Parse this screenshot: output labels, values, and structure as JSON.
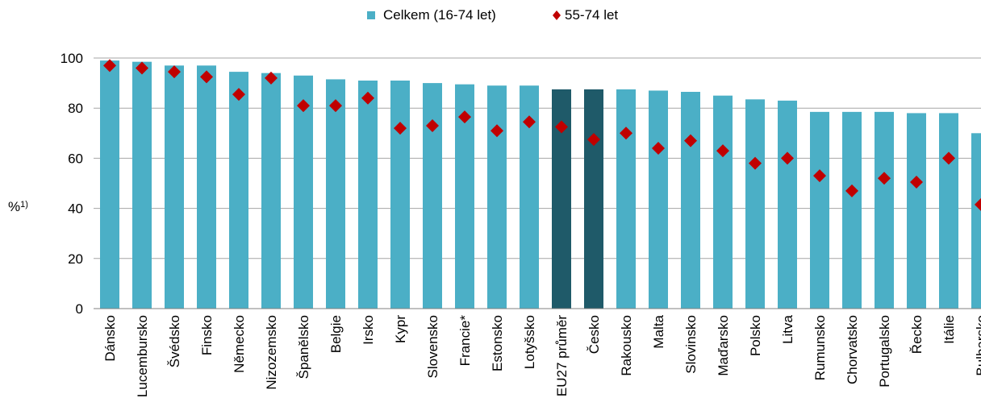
{
  "chart_data": {
    "type": "bar",
    "legend": {
      "position": "top-center",
      "items": [
        {
          "key": "total",
          "label": "Celkem (16-74 let)",
          "marker": "square"
        },
        {
          "key": "older",
          "label": "55-74 let",
          "marker": "diamond"
        }
      ]
    },
    "ylabel": "%",
    "ylabel_superscript": "1)",
    "ylim": [
      0,
      100
    ],
    "yticks": [
      0,
      20,
      40,
      60,
      80,
      100
    ],
    "grid": true,
    "categories": [
      "Dánsko",
      "Lucembursko",
      "Švédsko",
      "Finsko",
      "Německo",
      "Nizozemsko",
      "Španělsko",
      "Belgie",
      "Irsko",
      "Kypr",
      "Slovensko",
      "Francie*",
      "Estonsko",
      "Lotyšsko",
      "EU27 průměr",
      "Česko",
      "Rakousko",
      "Malta",
      "Slovinsko",
      "Maďarsko",
      "Polsko",
      "Litva",
      "Rumunsko",
      "Chorvatsko",
      "Portugalsko",
      "Řecko",
      "Itálie",
      "Bulharsko"
    ],
    "highlighted": [
      "EU27 průměr",
      "Česko"
    ],
    "series": [
      {
        "name": "Celkem (16-74 let)",
        "kind": "bar",
        "values": [
          99,
          98.5,
          97,
          97,
          94.5,
          94,
          93,
          91.5,
          91,
          91,
          90,
          89.5,
          89,
          89,
          87.5,
          87.5,
          87.5,
          87,
          86.5,
          85,
          83.5,
          83,
          78.5,
          78.5,
          78.5,
          78,
          78,
          70
        ]
      },
      {
        "name": "55-74 let",
        "kind": "marker",
        "values": [
          97,
          96,
          94.5,
          92.5,
          85.5,
          92,
          81,
          81,
          84,
          72,
          73,
          76.5,
          71,
          74.5,
          72.5,
          67.5,
          70,
          64,
          67,
          63,
          58,
          60,
          53,
          47,
          52,
          50.5,
          60,
          41.5
        ]
      }
    ],
    "colors": {
      "bar": "#4BAFC6",
      "bar_highlight": "#1F5A69",
      "marker": "#C00000",
      "grid": "#A6A6A6",
      "axis": "#808080"
    }
  }
}
